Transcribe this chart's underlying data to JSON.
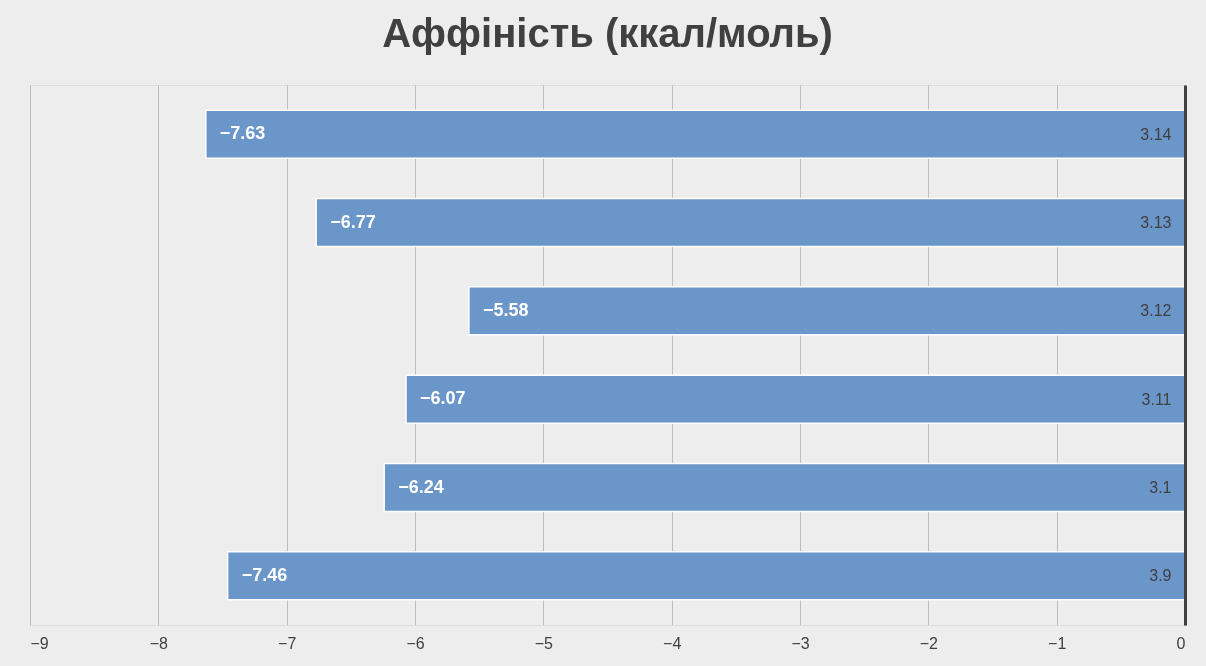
{
  "chart_data": {
    "type": "bar",
    "orientation": "horizontal",
    "title": "Аффіність (ккал/моль)",
    "categories": [
      "3.14",
      "3.13",
      "3.12",
      "3.11",
      "3.1",
      "3.9"
    ],
    "values": [
      -7.63,
      -6.77,
      -5.58,
      -6.07,
      -6.24,
      -7.46
    ],
    "color": "#6b96c9",
    "xlim": [
      -9,
      0
    ],
    "xticks": [
      -9,
      -8,
      -7,
      -6,
      -5,
      -4,
      -3,
      -2,
      -1,
      0
    ],
    "grid": "x",
    "data_labels": true
  }
}
